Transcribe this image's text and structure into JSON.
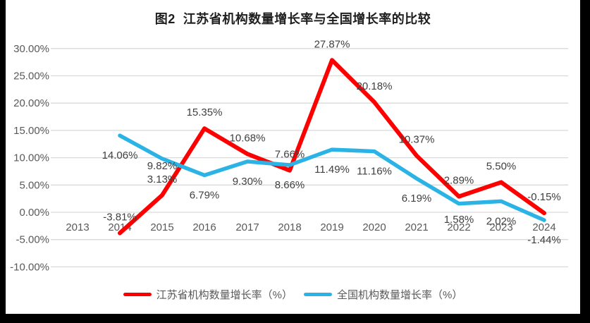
{
  "title": "图2  江苏省机构数量增长率与全国增长率的比较",
  "chart_data": {
    "type": "line",
    "title": "图2  江苏省机构数量增长率与全国增长率的比较",
    "categories": [
      "2013",
      "2014",
      "2015",
      "2016",
      "2017",
      "2018",
      "2019",
      "2020",
      "2021",
      "2022",
      "2023",
      "2024"
    ],
    "series": [
      {
        "name": "江苏省机构数量增长率（%）",
        "color": "#FE0000",
        "values": [
          null,
          -3.81,
          3.13,
          15.35,
          10.68,
          7.66,
          27.87,
          20.18,
          10.37,
          2.89,
          5.5,
          -0.15
        ],
        "labels": [
          "",
          "-3.81%",
          "3.13%",
          "15.35%",
          "10.68%",
          "7.66%",
          "27.87%",
          "20.18%",
          "10.37%",
          "2.89%",
          "5.50%",
          "-0.15%"
        ]
      },
      {
        "name": "全国机构数量增长率（%）",
        "color": "#2BB3E6",
        "values": [
          null,
          14.06,
          9.82,
          6.79,
          9.3,
          8.66,
          11.49,
          11.16,
          6.19,
          1.58,
          2.02,
          -1.44
        ],
        "labels": [
          "",
          "14.06%",
          "9.82%",
          "6.79%",
          "9.30%",
          "8.66%",
          "11.49%",
          "11.16%",
          "6.19%",
          "1.58%",
          "2.02%",
          "-1.44%"
        ]
      }
    ],
    "y_ticks": [
      "30.00%",
      "25.00%",
      "20.00%",
      "15.00%",
      "10.00%",
      "5.00%",
      "0.00%",
      "-5.00%",
      "-10.00%"
    ],
    "ylim": [
      -10,
      30
    ],
    "grid": true,
    "legend_position": "bottom",
    "colors": {
      "gridline": "#D9D9D9",
      "tick_label": "#595959",
      "data_label": "#3F3F3F",
      "title": "#1F1F1F",
      "background": "#FFFFFF",
      "border": "#000000"
    }
  }
}
